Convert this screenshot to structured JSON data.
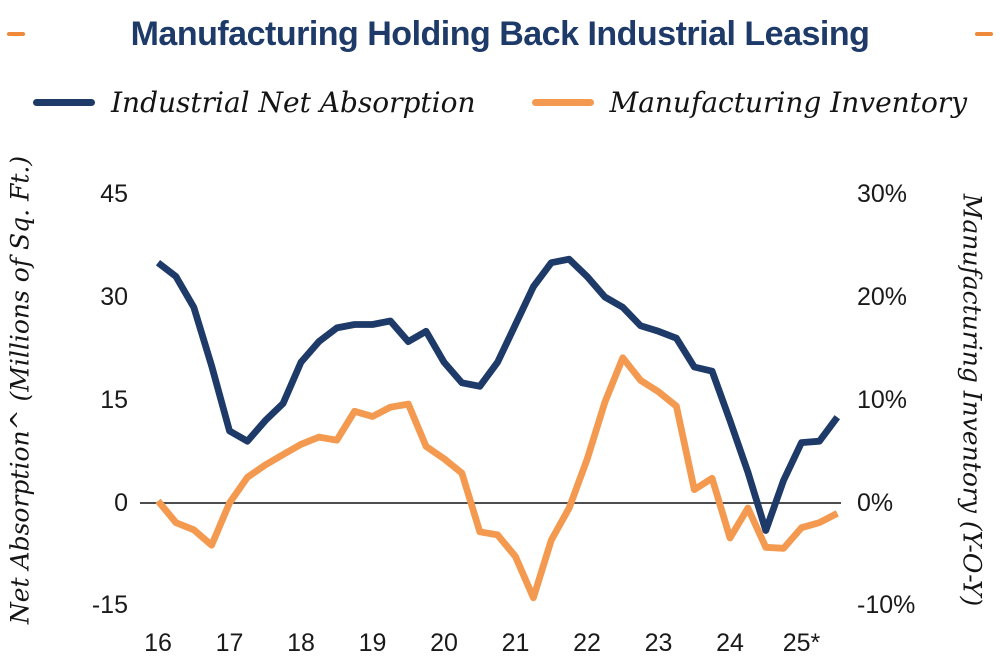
{
  "title": {
    "text": "Manufacturing Holding Back Industrial Leasing"
  },
  "legend": [
    {
      "label": "Industrial Net Absorption",
      "color": "#1e3a68"
    },
    {
      "label": "Manufacturing Inventory",
      "color": "#f49a50"
    }
  ],
  "left_axis": {
    "title": "Net Absorption^ (Millions of Sq. Ft.)",
    "tick_labels": [
      "45",
      "30",
      "15",
      "0",
      "-15"
    ],
    "tick_values": [
      45,
      30,
      15,
      0,
      -15
    ]
  },
  "right_axis": {
    "title": "Manufacturing Inventory (Y-O-Y)",
    "tick_labels": [
      "30%",
      "20%",
      "10%",
      "0%",
      "-10%"
    ],
    "tick_values": [
      30,
      20,
      10,
      0,
      -10
    ]
  },
  "x_axis": {
    "tick_labels": [
      "16",
      "17",
      "18",
      "19",
      "20",
      "21",
      "22",
      "23",
      "24",
      "25*"
    ]
  },
  "chart_data": {
    "type": "line",
    "title": "Manufacturing Holding Back Industrial Leasing",
    "x_unit": "quarter",
    "x_start": "2016 Q1",
    "x_end": "2025 Q3",
    "categories": [
      "16",
      "17",
      "18",
      "19",
      "20",
      "21",
      "22",
      "23",
      "24",
      "25*"
    ],
    "left_ylabel": "Net Absorption^ (Millions of Sq. Ft.)",
    "right_ylabel": "Manufacturing Inventory (Y-O-Y)",
    "left_ylim": [
      -15,
      45
    ],
    "right_ylim_pct": [
      -10,
      30
    ],
    "grid": false,
    "zero_line": true,
    "legend_position": "top",
    "series": [
      {
        "name": "Industrial Net Absorption",
        "axis": "left",
        "units": "millions of sq. ft.",
        "color": "#1e3a68",
        "values": [
          35,
          33,
          28.5,
          20,
          10.5,
          9,
          12,
          14.5,
          20.5,
          23.5,
          25.5,
          26,
          26,
          26.5,
          23.5,
          25,
          20.5,
          17.5,
          17,
          20.5,
          26,
          31.5,
          35,
          35.5,
          33,
          30,
          28.5,
          25.8,
          25,
          24,
          19.8,
          19.2,
          12,
          4.5,
          -4,
          3.3,
          8.8,
          9,
          12.5
        ]
      },
      {
        "name": "Manufacturing Inventory",
        "axis": "right",
        "units": "% year-over-year",
        "color": "#f49a50",
        "values": [
          0.2,
          -1.9,
          -2.6,
          -4.1,
          0,
          2.5,
          3.7,
          4.7,
          5.7,
          6.4,
          6.1,
          8.9,
          8.4,
          9.3,
          9.6,
          5.5,
          4.3,
          2.9,
          -2.8,
          -3.1,
          -5.2,
          -9.2,
          -3.6,
          -0.5,
          4.2,
          9.8,
          14.1,
          11.9,
          10.8,
          9.4,
          1.3,
          2.4,
          -3.4,
          -0.5,
          -4.3,
          -4.4,
          -2.4,
          -1.9,
          -1
        ]
      }
    ]
  }
}
